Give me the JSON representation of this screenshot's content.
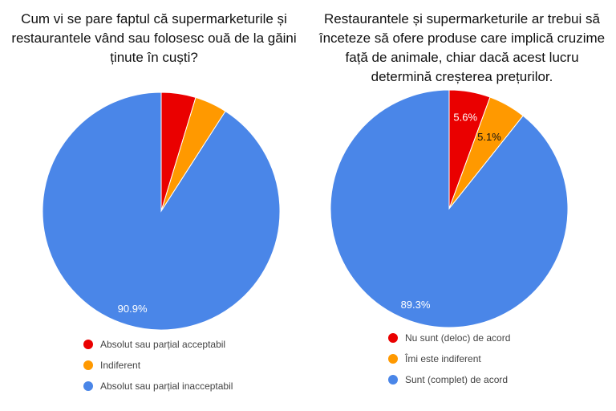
{
  "chart_data": [
    {
      "type": "pie",
      "title": "Cum vi se pare faptul că supermarketurile și restaurantele vând sau folosesc ouă de la găini ținute în cuști?",
      "legend_position": "bottom",
      "slices": [
        {
          "name": "Absolut sau parțial acceptabil",
          "value": 4.7,
          "color": "#ea0000",
          "label": ""
        },
        {
          "name": "Indiferent",
          "value": 4.4,
          "color": "#ff9900",
          "label": ""
        },
        {
          "name": "Absolut sau parțial inacceptabil",
          "value": 90.9,
          "color": "#4a86e8",
          "label": "90.9%"
        }
      ]
    },
    {
      "type": "pie",
      "title": "Restaurantele și supermarketurile ar trebui să înceteze să ofere produse care implică cruzime față de animale, chiar dacă acest lucru determină creșterea prețurilor.",
      "legend_position": "bottom",
      "slices": [
        {
          "name": "Nu sunt (deloc) de acord",
          "value": 5.6,
          "color": "#ea0000",
          "label": "5.6%"
        },
        {
          "name": "Îmi este indiferent",
          "value": 5.1,
          "color": "#ff9900",
          "label": "5.1%"
        },
        {
          "name": "Sunt (complet) de acord",
          "value": 89.3,
          "color": "#4a86e8",
          "label": "89.3%"
        }
      ]
    }
  ]
}
